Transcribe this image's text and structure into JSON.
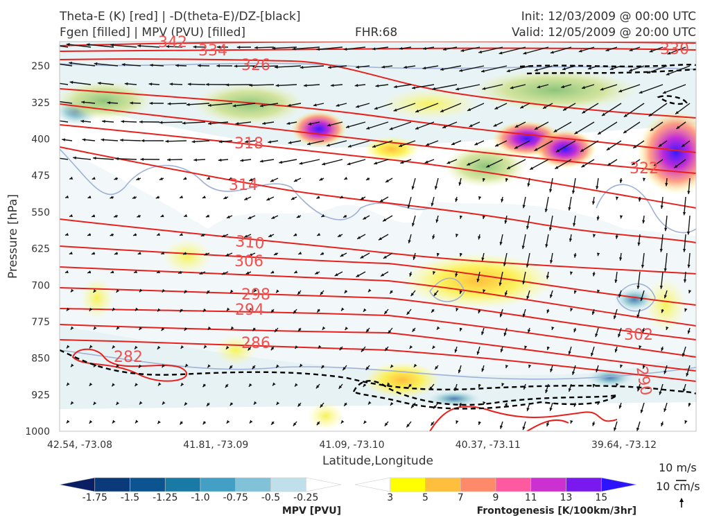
{
  "header": {
    "title_line1": "Theta-E (K) [red] | -D(theta-E)/DZ-[black]",
    "title_line2": "Fgen [filled] | MPV (PVU) [filled]",
    "fhr": "FHR:68",
    "init": "Init: 12/03/2009 @ 00:00 UTC",
    "valid": "Valid: 12/05/2009 @ 20:00 UTC"
  },
  "chart_data": {
    "type": "contour-cross-section",
    "xlabel": "Latitude,Longitude",
    "ylabel": "Pressure [hPa]",
    "x_ticks": [
      "42.54, -73.08",
      "41.81, -73.09",
      "41.09, -73.10",
      "40.37, -73.11",
      "39.64, -73.12"
    ],
    "y_ticks": [
      250,
      325,
      400,
      475,
      550,
      625,
      700,
      775,
      850,
      925,
      1000
    ],
    "ylim": [
      1000,
      200
    ],
    "y_reversed": true,
    "theta_e_contour_labels": [
      "342",
      "334",
      "330",
      "326",
      "322",
      "318",
      "314",
      "310",
      "306",
      "302",
      "298",
      "294",
      "290",
      "286",
      "282"
    ],
    "theta_e_color": "#e8201c",
    "mpv_colorbar": {
      "title": "MPV [PVU]",
      "ticks": [
        "-1.75",
        "-1.5",
        "-1.25",
        "-1.0",
        "-0.75",
        "-0.5",
        "-0.25"
      ],
      "colors": [
        "#0a1f63",
        "#0b3a7a",
        "#0b5490",
        "#1a7aa6",
        "#43a0c4",
        "#82c2d8",
        "#bfe0ea",
        "#ffffff"
      ]
    },
    "fgen_colorbar": {
      "title": "Frontogenesis [K/100km/3hr]",
      "ticks": [
        "3",
        "5",
        "7",
        "9",
        "11",
        "13",
        "15"
      ],
      "colors": [
        "#ffffff",
        "#ffff00",
        "#ffbf3c",
        "#ff8a6a",
        "#ff5aa0",
        "#cc30d0",
        "#7a18f0",
        "#2c14ff"
      ]
    },
    "wind_key": {
      "horizontal": "10 m/s",
      "vertical": "10 cm/s"
    }
  }
}
